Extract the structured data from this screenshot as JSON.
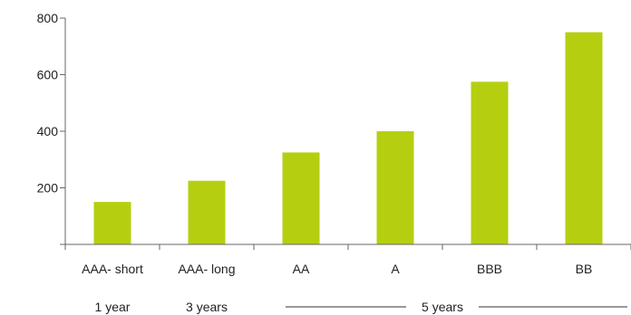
{
  "chart_data": {
    "type": "bar",
    "categories": [
      "AAA- short",
      "AAA- long",
      "AA",
      "A",
      "BBB",
      "BB"
    ],
    "values": [
      150,
      225,
      325,
      400,
      575,
      750
    ],
    "ylim": [
      0,
      800
    ],
    "yticks": [
      200,
      400,
      600,
      800
    ],
    "bar_color": "#b5cf10",
    "axis_color": "#666666",
    "grid": false,
    "groups": [
      {
        "label": "1 year",
        "start": 0,
        "end": 0,
        "bracket": false
      },
      {
        "label": "3 years",
        "start": 1,
        "end": 1,
        "bracket": false
      },
      {
        "label": "5 years",
        "start": 2,
        "end": 5,
        "bracket": true
      }
    ]
  }
}
